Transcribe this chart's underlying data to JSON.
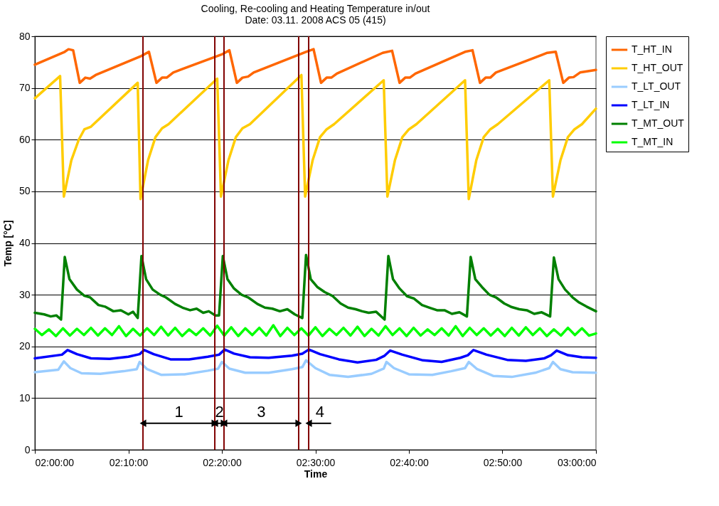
{
  "chart_data": {
    "type": "line",
    "title": "Cooling, Re-cooling and Heating Temperature in/out",
    "subtitle": "Date: 03.11. 2008  ACS 05 (415)",
    "xlabel": "Time",
    "ylabel": "Temp [°C]",
    "xlim": [
      2,
      3
    ],
    "xticks": [
      {
        "value": 2,
        "label": "02:00:00"
      },
      {
        "value": 2.1667,
        "label": "02:10:00"
      },
      {
        "value": 2.3333,
        "label": "02:20:00"
      },
      {
        "value": 2.5,
        "label": "02:30:00"
      },
      {
        "value": 2.6667,
        "label": "02:40:00"
      },
      {
        "value": 2.8333,
        "label": "02:50:00"
      },
      {
        "value": 3,
        "label": "03:00:00"
      }
    ],
    "ylim": [
      0,
      80
    ],
    "yticks": [
      0,
      10,
      20,
      30,
      40,
      50,
      60,
      70,
      80
    ],
    "grid": "y",
    "legend": "top right",
    "x": [
      2,
      2.0125,
      2.025,
      2.0375,
      2.05,
      2.0625,
      2.075,
      2.0875,
      2.1,
      2.1125,
      2.125,
      2.1375,
      2.15,
      2.1625,
      2.175,
      2.1875,
      2.2,
      2.2125,
      2.225,
      2.2375,
      2.25,
      2.2625,
      2.275,
      2.2875,
      2.3,
      2.3125,
      2.325,
      2.3375,
      2.35,
      2.3625,
      2.375,
      2.3875,
      2.4,
      2.4125,
      2.425,
      2.4375,
      2.45,
      2.4625,
      2.475,
      2.4875,
      2.5,
      2.5125,
      2.525,
      2.5375,
      2.55,
      2.5625,
      2.575,
      2.5875,
      2.6,
      2.6125,
      2.625,
      2.6375,
      2.65,
      2.6625,
      2.675,
      2.6875,
      2.7,
      2.7125,
      2.725,
      2.7375,
      2.75,
      2.7625,
      2.775,
      2.7875,
      2.8,
      2.8125,
      2.825,
      2.8375,
      2.85,
      2.8625,
      2.875,
      2.8875,
      2.9,
      2.9125,
      2.925,
      2.9375,
      2.95,
      2.9625,
      2.975,
      2.9875,
      3
    ],
    "series": [
      {
        "name": "T_HT_IN",
        "color": "#ff6600",
        "x": [
          2,
          2.0533,
          2.06,
          2.0683,
          2.08,
          2.09,
          2.0983,
          2.1083,
          2.19,
          2.2033,
          2.2167,
          2.2267,
          2.235,
          2.2467,
          2.3333,
          2.3467,
          2.36,
          2.37,
          2.38,
          2.39,
          2.4833,
          2.4967,
          2.51,
          2.52,
          2.5283,
          2.5383,
          2.62,
          2.6367,
          2.65,
          2.66,
          2.6683,
          2.6783,
          2.7667,
          2.78,
          2.7933,
          2.8033,
          2.8117,
          2.8217,
          2.9133,
          2.9283,
          2.9417,
          2.9517,
          2.96,
          2.9717,
          3
        ],
        "values": [
          74.5,
          77,
          77.5,
          77.3,
          71,
          72,
          71.8,
          72.5,
          76.2,
          77,
          71,
          72,
          72,
          73,
          76.5,
          77.3,
          71,
          72,
          72.2,
          73,
          77,
          77.5,
          71,
          72,
          72,
          72.8,
          76.8,
          77.2,
          71,
          72,
          72,
          72.8,
          77,
          77.3,
          71,
          72,
          72,
          73,
          76.8,
          77,
          71,
          72,
          72.1,
          73,
          73.5
        ]
      },
      {
        "name": "T_HT_OUT",
        "color": "#ffcc00",
        "x": [
          2,
          2.045,
          2.0517,
          2.065,
          2.0783,
          2.0883,
          2.1,
          2.1833,
          2.1883,
          2.2017,
          2.215,
          2.2267,
          2.2383,
          2.325,
          2.3317,
          2.345,
          2.3583,
          2.37,
          2.3833,
          2.475,
          2.4817,
          2.495,
          2.5083,
          2.52,
          2.5333,
          2.6217,
          2.6283,
          2.6417,
          2.655,
          2.6667,
          2.68,
          2.7667,
          2.7733,
          2.7867,
          2.8,
          2.8117,
          2.825,
          2.9167,
          2.9233,
          2.9367,
          2.95,
          2.9617,
          2.975,
          3
        ],
        "values": [
          68,
          72.3,
          49,
          56,
          60,
          62,
          62.5,
          71,
          48.5,
          56,
          60.5,
          62.2,
          63,
          71.8,
          49,
          56,
          60.5,
          62.2,
          63,
          72.5,
          49,
          56,
          60.5,
          62,
          63,
          71.5,
          49,
          56,
          60.5,
          62,
          63,
          71.5,
          48.5,
          56,
          60.5,
          62,
          63,
          71.5,
          49,
          56,
          60.5,
          62,
          63,
          66
        ]
      },
      {
        "name": "T_LT_OUT",
        "color": "#99ccff",
        "x": [
          2,
          2.0417,
          2.0517,
          2.0633,
          2.0833,
          2.1167,
          2.1583,
          2.1817,
          2.1867,
          2.2,
          2.225,
          2.2667,
          2.3083,
          2.3267,
          2.3333,
          2.3467,
          2.375,
          2.4167,
          2.4583,
          2.4767,
          2.4833,
          2.5,
          2.525,
          2.5583,
          2.6,
          2.6217,
          2.6267,
          2.64,
          2.6667,
          2.7083,
          2.7417,
          2.7667,
          2.7733,
          2.7883,
          2.8167,
          2.85,
          2.8917,
          2.9167,
          2.9233,
          2.9367,
          2.9583,
          3
        ],
        "values": [
          15,
          15.5,
          17.1,
          15.8,
          14.8,
          14.7,
          15.2,
          15.6,
          17,
          15.6,
          14.5,
          14.6,
          15.3,
          15.7,
          17,
          15.7,
          14.9,
          14.9,
          15.6,
          16,
          17.3,
          15.8,
          14.5,
          14.1,
          14.7,
          15.7,
          17,
          15.8,
          14.6,
          14.5,
          15.2,
          15.8,
          17,
          15.6,
          14.3,
          14.1,
          14.9,
          15.8,
          17,
          15.6,
          15,
          14.9
        ]
      },
      {
        "name": "T_LT_IN",
        "color": "#0000ff",
        "x": [
          2,
          2.0483,
          2.0583,
          2.075,
          2.1,
          2.1333,
          2.1667,
          2.1867,
          2.195,
          2.2117,
          2.2417,
          2.275,
          2.3083,
          2.3283,
          2.3383,
          2.355,
          2.3833,
          2.4167,
          2.4583,
          2.4767,
          2.4883,
          2.5083,
          2.5417,
          2.575,
          2.6083,
          2.6233,
          2.6333,
          2.655,
          2.6917,
          2.725,
          2.7583,
          2.7717,
          2.7817,
          2.805,
          2.8417,
          2.875,
          2.9083,
          2.92,
          2.93,
          2.95,
          2.975,
          3
        ],
        "values": [
          17.7,
          18.4,
          19.3,
          18.5,
          17.7,
          17.6,
          18,
          18.5,
          19.3,
          18.5,
          17.5,
          17.5,
          18,
          18.4,
          19.4,
          18.6,
          17.9,
          17.8,
          18.2,
          18.6,
          19.4,
          18.5,
          17.5,
          16.9,
          17.4,
          18.2,
          19.2,
          18.4,
          17.3,
          17,
          17.8,
          18.3,
          19.3,
          18.4,
          17.4,
          17.2,
          17.7,
          18.3,
          19.2,
          18.3,
          17.9,
          17.8
        ]
      },
      {
        "name": "T_MT_OUT",
        "color": "#008000",
        "x": [
          2,
          2.0167,
          2.0283,
          2.0383,
          2.0467,
          2.0533,
          2.0617,
          2.075,
          2.0883,
          2.0983,
          2.1133,
          2.125,
          2.14,
          2.1533,
          2.1667,
          2.175,
          2.1833,
          2.19,
          2.1983,
          2.21,
          2.2233,
          2.2333,
          2.25,
          2.2633,
          2.2767,
          2.2883,
          2.3,
          2.31,
          2.3217,
          2.3283,
          2.335,
          2.3433,
          2.355,
          2.3683,
          2.38,
          2.3967,
          2.41,
          2.4233,
          2.4367,
          2.45,
          2.4633,
          2.4767,
          2.4833,
          2.4917,
          2.5033,
          2.5167,
          2.53,
          2.545,
          2.5583,
          2.5717,
          2.5833,
          2.595,
          2.6083,
          2.6233,
          2.63,
          2.6383,
          2.65,
          2.6633,
          2.675,
          2.69,
          2.7033,
          2.7167,
          2.73,
          2.7433,
          2.7567,
          2.77,
          2.7767,
          2.785,
          2.7967,
          2.81,
          2.8217,
          2.8367,
          2.85,
          2.8633,
          2.8767,
          2.89,
          2.9033,
          2.9183,
          2.925,
          2.9333,
          2.945,
          2.9583,
          2.97,
          2.9833,
          3
        ],
        "values": [
          26.5,
          26.2,
          25.8,
          26,
          25.2,
          37.3,
          33,
          31,
          29.8,
          29.5,
          28,
          27.7,
          26.8,
          27,
          26.2,
          26.7,
          25.5,
          37.5,
          33,
          31,
          30,
          29.5,
          28.2,
          27.5,
          27,
          27.3,
          26.5,
          26.8,
          26,
          26,
          37.5,
          33,
          31.2,
          30,
          29.5,
          28.2,
          27.5,
          27.3,
          26.8,
          27.2,
          26.2,
          25.5,
          37.7,
          33,
          31.5,
          30.5,
          29.8,
          28.3,
          27.5,
          27.2,
          26.8,
          26.5,
          26.7,
          25.2,
          37.5,
          33,
          31.2,
          29.7,
          29.3,
          28,
          27.5,
          27,
          27,
          26.3,
          26.6,
          25.8,
          37.3,
          33,
          31.5,
          30,
          29.5,
          28.3,
          27.6,
          27.2,
          27,
          26.3,
          26.6,
          25.8,
          37.2,
          33,
          31,
          29.5,
          28.5,
          27.7,
          26.8
        ]
      },
      {
        "name": "T_MT_IN",
        "color": "#00ff00",
        "values": [
          23.4,
          22.2,
          23.3,
          22.0,
          23.5,
          22.1,
          23.4,
          22.2,
          23.6,
          22.1,
          23.5,
          22.2,
          23.9,
          22.0,
          23.4,
          22.1,
          23.5,
          22.2,
          23.8,
          22.1,
          23.6,
          22.0,
          23.3,
          22.2,
          23.5,
          22.1,
          24.0,
          22.1,
          23.7,
          22.0,
          23.5,
          22.2,
          23.6,
          22.1,
          24.1,
          22.0,
          23.6,
          22.2,
          23.5,
          22.1,
          23.7,
          22.0,
          23.4,
          22.2,
          23.6,
          22.1,
          23.8,
          22.0,
          23.4,
          22.1,
          23.9,
          22.2,
          23.5,
          22.0,
          23.6,
          22.1,
          23.3,
          22.2,
          23.5,
          22.1,
          23.9,
          22.0,
          23.6,
          22.2,
          23.5,
          22.1,
          23.4,
          22.0,
          23.6,
          22.1,
          23.7,
          22.2,
          23.5,
          22.0,
          23.3,
          22.1,
          23.6,
          22.2,
          23.5,
          22.1,
          22.5
        ]
      }
    ],
    "ref_lines": [
      {
        "axis": "x",
        "value": 2.1927,
        "color": "#800000"
      },
      {
        "axis": "x",
        "value": 2.3207,
        "color": "#800000"
      },
      {
        "axis": "x",
        "value": 2.3371,
        "color": "#800000"
      },
      {
        "axis": "x",
        "value": 2.4702,
        "color": "#800000"
      },
      {
        "axis": "x",
        "value": 2.488,
        "color": "#800000"
      }
    ],
    "annotations": [
      "1",
      "2",
      "3",
      "4"
    ]
  }
}
